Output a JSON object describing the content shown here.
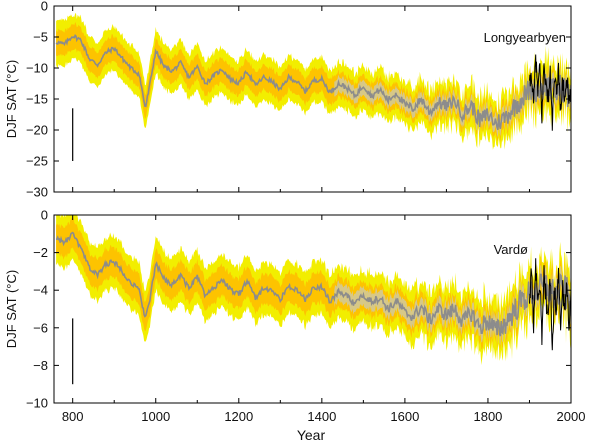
{
  "xlabel": "Year",
  "colors": {
    "outer_band": "#f2ee00",
    "inner_band": "#fdc300",
    "reconstruction": "#8c8c8c",
    "overlap_band": "#c9c9b4",
    "instrumental": "#000000"
  },
  "chart_data": [
    {
      "type": "line",
      "station": "Longyearbyen",
      "ylabel": "DJF SAT (°C)",
      "xlim": [
        755,
        2000
      ],
      "ylim": [
        -30,
        0
      ],
      "xticks": [
        800,
        1000,
        1200,
        1400,
        1600,
        1800,
        2000
      ],
      "yticks": [
        0,
        -5,
        -10,
        -15,
        -20,
        -25,
        -30
      ],
      "grid": false,
      "error_bar": {
        "x": 800,
        "y_low": -25,
        "y_high": -16.5
      },
      "series": [
        {
          "role": "reconstruction",
          "x": [
            760,
            780,
            800,
            820,
            840,
            860,
            880,
            900,
            920,
            940,
            960,
            975,
            985,
            1000,
            1020,
            1040,
            1060,
            1080,
            1100,
            1120,
            1140,
            1160,
            1180,
            1200,
            1220,
            1240,
            1260,
            1280,
            1300,
            1320,
            1340,
            1360,
            1380,
            1400,
            1420,
            1440,
            1460,
            1480,
            1500,
            1520,
            1540,
            1560,
            1580,
            1600,
            1620,
            1640,
            1660,
            1680,
            1700,
            1720,
            1740,
            1760,
            1780,
            1800,
            1820,
            1840,
            1860,
            1880,
            1900,
            1920,
            1940,
            1960,
            1980,
            2000
          ],
          "y": [
            -5.8,
            -6.2,
            -4.8,
            -5.5,
            -8.5,
            -9.5,
            -7.5,
            -6.8,
            -8.5,
            -10,
            -11,
            -16.5,
            -13,
            -7.2,
            -9.8,
            -10.5,
            -9.2,
            -11.5,
            -9.8,
            -12.5,
            -11.2,
            -10.2,
            -11.8,
            -12.5,
            -10.5,
            -12.8,
            -11.5,
            -12.2,
            -13.5,
            -11.5,
            -12.2,
            -13.8,
            -12,
            -11.8,
            -14,
            -12.5,
            -13.2,
            -14.5,
            -12.8,
            -14.5,
            -13.5,
            -15.2,
            -14,
            -16,
            -16.5,
            -15,
            -17.2,
            -15.5,
            -16.2,
            -15.2,
            -17.5,
            -16,
            -18.5,
            -17.5,
            -19,
            -18,
            -16.5,
            -15,
            -13.5,
            -13.5,
            -12.5,
            -14,
            -13,
            -15
          ]
        },
        {
          "role": "instrumental",
          "x": [
            1900,
            1905,
            1910,
            1915,
            1920,
            1925,
            1930,
            1935,
            1940,
            1945,
            1950,
            1955,
            1960,
            1965,
            1970,
            1975,
            1980,
            1985,
            1990,
            1995,
            2000
          ],
          "y": [
            -13,
            -11,
            -16,
            -8,
            -14,
            -10,
            -18,
            -9,
            -13,
            -15,
            -11,
            -19,
            -12,
            -14,
            -10,
            -17,
            -12,
            -15,
            -11,
            -16,
            -14
          ]
        }
      ]
    },
    {
      "type": "line",
      "station": "Vardø",
      "ylabel": "DJF SAT (°C)",
      "xlim": [
        755,
        2000
      ],
      "ylim": [
        -10,
        0
      ],
      "xticks": [
        800,
        1000,
        1200,
        1400,
        1600,
        1800,
        2000
      ],
      "yticks": [
        0,
        -2,
        -4,
        -6,
        -8,
        -10
      ],
      "grid": false,
      "error_bar": {
        "x": 800,
        "y_low": -9,
        "y_high": -5.5
      },
      "series": [
        {
          "role": "reconstruction",
          "x": [
            760,
            780,
            800,
            820,
            840,
            860,
            880,
            900,
            920,
            940,
            960,
            975,
            985,
            1000,
            1020,
            1040,
            1060,
            1080,
            1100,
            1120,
            1140,
            1160,
            1180,
            1200,
            1220,
            1240,
            1260,
            1280,
            1300,
            1320,
            1340,
            1360,
            1380,
            1400,
            1420,
            1440,
            1460,
            1480,
            1500,
            1520,
            1540,
            1560,
            1580,
            1600,
            1620,
            1640,
            1660,
            1680,
            1700,
            1720,
            1740,
            1760,
            1780,
            1800,
            1820,
            1840,
            1860,
            1880,
            1900,
            1920,
            1940,
            1960,
            1980,
            2000
          ],
          "y": [
            -1.2,
            -1.5,
            -1,
            -1.8,
            -2.8,
            -3.2,
            -2.6,
            -2.5,
            -3,
            -3.6,
            -4,
            -5.5,
            -4.6,
            -2.6,
            -3.4,
            -3.7,
            -3.2,
            -3.9,
            -3.3,
            -4.3,
            -3.9,
            -3.4,
            -4,
            -4.2,
            -3.5,
            -4.4,
            -3.9,
            -4,
            -4.5,
            -3.8,
            -4,
            -4.5,
            -3.9,
            -3.8,
            -4.6,
            -4.1,
            -4.3,
            -4.8,
            -4.2,
            -4.6,
            -4.4,
            -5,
            -4.6,
            -5.2,
            -5.4,
            -4.9,
            -5.6,
            -5,
            -5.3,
            -5,
            -5.7,
            -5.2,
            -6,
            -5.6,
            -6.2,
            -5.8,
            -5.2,
            -4.6,
            -4.2,
            -4,
            -3.8,
            -4.3,
            -4,
            -4.5
          ]
        },
        {
          "role": "instrumental",
          "x": [
            1900,
            1905,
            1910,
            1915,
            1920,
            1925,
            1930,
            1935,
            1940,
            1945,
            1950,
            1955,
            1960,
            1965,
            1970,
            1975,
            1980,
            1985,
            1990,
            1995,
            2000
          ],
          "y": [
            -4.5,
            -3,
            -6,
            -2.5,
            -5,
            -3.5,
            -6.5,
            -3,
            -4.5,
            -5.5,
            -3.5,
            -6.8,
            -4,
            -5,
            -3.2,
            -6,
            -4,
            -5.2,
            -3.5,
            -5.8,
            -4.5
          ]
        }
      ]
    }
  ]
}
